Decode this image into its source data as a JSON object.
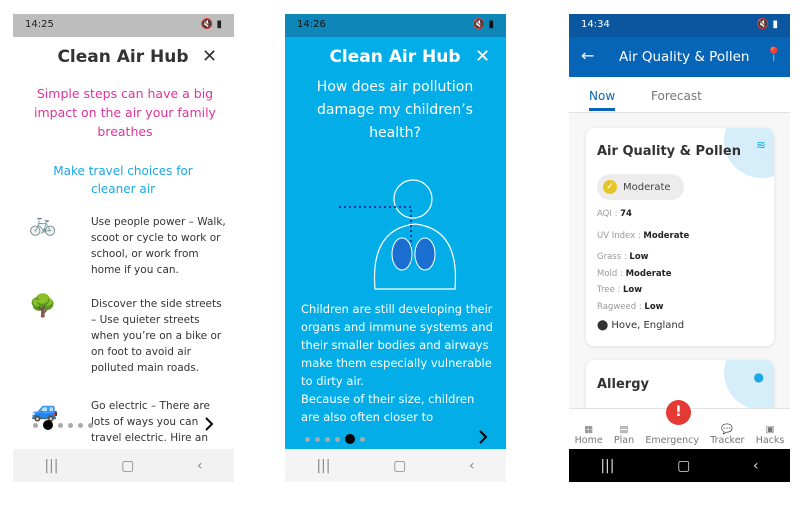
{
  "colors": {
    "pink": "#e0329a",
    "cyan": "#1aa8e6",
    "blue_bg": "#03aee8",
    "header_blue": "#0765b8",
    "emergency_red": "#e53935",
    "moderate_yellow": "#e5c62a"
  },
  "screen1": {
    "status_time": "14:25",
    "title": "Clean Air Hub",
    "close_icon": "close-icon",
    "headline": "Simple steps can have a big impact on the air your family breathes",
    "subheading": "Make travel choices for cleaner air",
    "items": [
      {
        "icon": "people-cycling-icon",
        "text": "Use people power – Walk, scoot or cycle to work or school, or work from home if you can."
      },
      {
        "icon": "trees-icon",
        "text": "Discover the side streets – Use quieter streets when you’re on a bike or on foot to avoid air polluted main roads."
      },
      {
        "icon": "electric-car-icon",
        "text": "Go electric – There are lots of ways you can travel electric. Hire an"
      }
    ],
    "page_index": 1,
    "page_count": 6
  },
  "screen2": {
    "status_time": "14:26",
    "title": "Clean Air Hub",
    "question": "How does air pollution damage my children’s health?",
    "body1": "Children are still developing their organs and immune systems and their smaller bodies and airways make them especially vulnerable to dirty air.",
    "body2": "Because of their size, children are also often closer to",
    "page_index": 5,
    "page_count": 6
  },
  "screen3": {
    "status_time": "14:34",
    "title": "Air Quality & Pollen",
    "tabs": [
      {
        "label": "Now",
        "active": true
      },
      {
        "label": "Forecast",
        "active": false
      }
    ],
    "card": {
      "title": "Air Quality & Pollen",
      "badge": "Moderate",
      "rows": [
        {
          "label": "AQI : ",
          "value": "74"
        },
        {
          "label": "UV Index : ",
          "value": "Moderate"
        },
        {
          "label": "Grass : ",
          "value": "Low"
        },
        {
          "label": "Mold : ",
          "value": "Moderate"
        },
        {
          "label": "Tree : ",
          "value": "Low"
        },
        {
          "label": "Ragweed : ",
          "value": "Low"
        }
      ],
      "location": "Hove, England"
    },
    "card2": {
      "title": "Allergy"
    },
    "bottom_nav": [
      {
        "label": "Home"
      },
      {
        "label": "Plan"
      },
      {
        "label": "Emergency"
      },
      {
        "label": "Tracker"
      },
      {
        "label": "Hacks"
      }
    ]
  }
}
